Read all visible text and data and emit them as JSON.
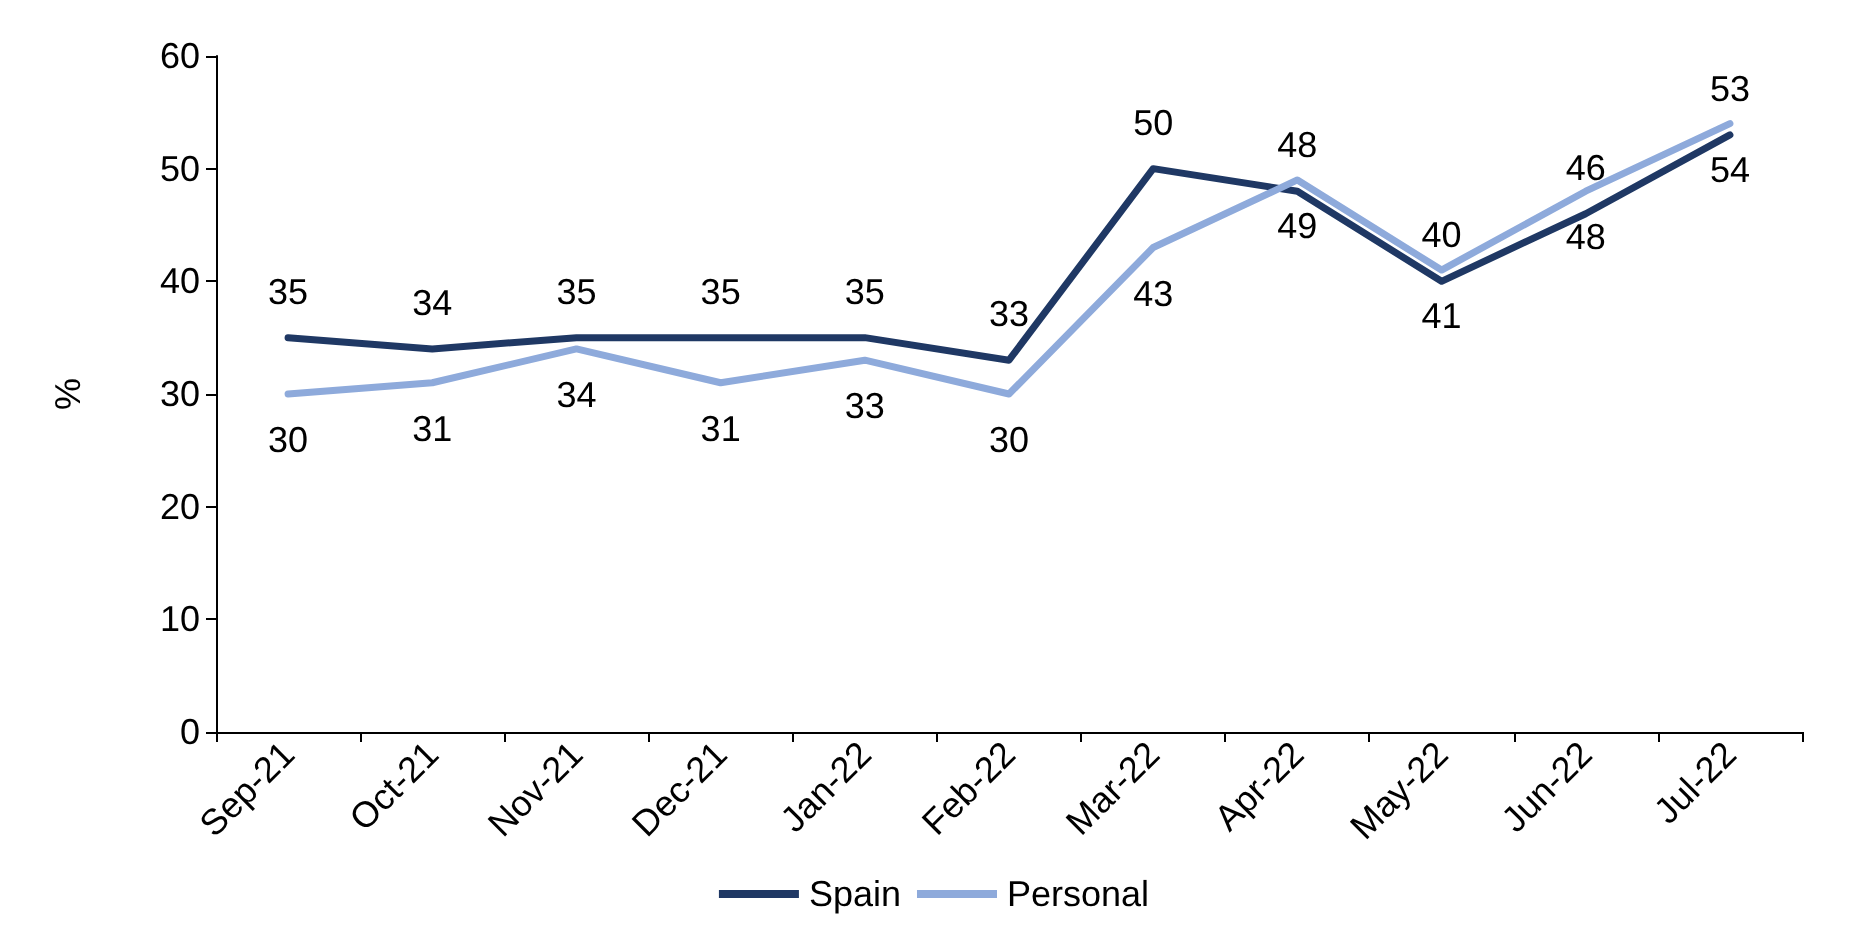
{
  "chart_data": {
    "type": "line",
    "ylabel": "%",
    "categories": [
      "Sep-21",
      "Oct-21",
      "Nov-21",
      "Dec-21",
      "Jan-22",
      "Feb-22",
      "Mar-22",
      "Apr-22",
      "May-22",
      "Jun-22",
      "Jul-22"
    ],
    "series": [
      {
        "name": "Spain",
        "color": "#1f3864",
        "values": [
          35,
          34,
          35,
          35,
          35,
          33,
          50,
          48,
          40,
          46,
          53
        ]
      },
      {
        "name": "Personal",
        "color": "#8eaadb",
        "values": [
          30,
          31,
          34,
          31,
          33,
          30,
          43,
          49,
          41,
          48,
          54
        ]
      }
    ],
    "ylim": [
      0,
      60
    ],
    "yticks": [
      0,
      10,
      20,
      30,
      40,
      50,
      60
    ],
    "grid": false,
    "legend": "bottom",
    "data_labels": true,
    "marker": "none",
    "line_style": "solid"
  }
}
